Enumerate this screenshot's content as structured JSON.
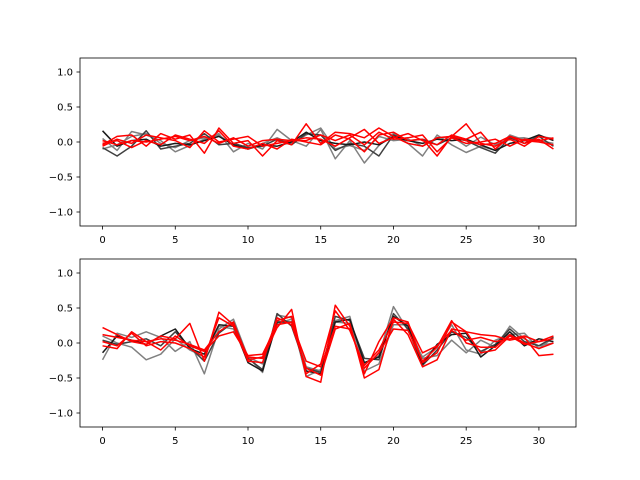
{
  "chart_data": [
    {
      "type": "line",
      "x": [
        0,
        1,
        2,
        3,
        4,
        5,
        6,
        7,
        8,
        9,
        10,
        11,
        12,
        13,
        14,
        15,
        16,
        17,
        18,
        19,
        20,
        21,
        22,
        23,
        24,
        25,
        26,
        27,
        28,
        29,
        30,
        31
      ],
      "ylim": [
        -1.2,
        1.2
      ],
      "xlim": [
        -1.55,
        32.55
      ],
      "xticks": [
        0,
        5,
        10,
        15,
        20,
        25,
        30
      ],
      "yticks": [
        -1.0,
        -0.5,
        0.0,
        0.5,
        1.0
      ],
      "xtick_labels": [
        "0",
        "5",
        "10",
        "15",
        "20",
        "25",
        "30"
      ],
      "ytick_labels": [
        "−1.0",
        "−0.5",
        "0.0",
        "0.5",
        "1.0"
      ],
      "series": [
        {
          "color": "#808080",
          "values": [
            -0.1,
            -0.04,
            0.08,
            0.12,
            -0.02,
            -0.08,
            0.02,
            0.06,
            0.1,
            -0.05,
            -0.1,
            -0.02,
            0.06,
            -0.03,
            0.1,
            0.2,
            -0.1,
            -0.05,
            -0.12,
            0.08,
            0.02,
            0.04,
            -0.06,
            0.05,
            0.08,
            -0.06,
            0.07,
            -0.04,
            0.05,
            0.06,
            0.02,
            -0.02
          ]
        },
        {
          "color": "#808080",
          "values": [
            0.05,
            -0.12,
            0.15,
            0.1,
            0.02,
            -0.14,
            -0.05,
            0.04,
            0.12,
            -0.14,
            -0.02,
            -0.1,
            0.18,
            0.02,
            -0.06,
            0.18,
            -0.24,
            0.02,
            -0.3,
            -0.05,
            0.12,
            -0.02,
            -0.2,
            0.1,
            -0.04,
            -0.15,
            -0.06,
            -0.12,
            0.1,
            0.03,
            0.08,
            0.05
          ]
        },
        {
          "color": "#404040",
          "values": [
            -0.08,
            -0.2,
            -0.06,
            0.16,
            -0.1,
            -0.06,
            -0.02,
            0.12,
            -0.04,
            -0.02,
            -0.08,
            -0.06,
            0.04,
            -0.04,
            0.12,
            0.1,
            -0.12,
            -0.02,
            -0.06,
            -0.2,
            0.1,
            0.02,
            0.04,
            -0.04,
            0.06,
            0.02,
            -0.08,
            -0.16,
            0.06,
            -0.02,
            0.08,
            -0.06
          ]
        },
        {
          "color": "#1a1a1a",
          "values": [
            0.16,
            -0.06,
            0.02,
            0.04,
            -0.06,
            -0.02,
            -0.04,
            0.02,
            0.08,
            -0.04,
            -0.1,
            -0.04,
            -0.06,
            0.0,
            0.14,
            0.02,
            -0.02,
            -0.04,
            0.0,
            -0.04,
            0.08,
            0.02,
            -0.02,
            0.04,
            0.02,
            0.04,
            -0.04,
            -0.12,
            -0.02,
            0.02,
            0.1,
            0.02
          ]
        },
        {
          "color": "#ff0000",
          "values": [
            -0.04,
            0.08,
            0.1,
            -0.06,
            0.12,
            0.04,
            0.1,
            -0.16,
            0.2,
            -0.02,
            0.02,
            -0.2,
            0.02,
            -0.04,
            0.26,
            -0.02,
            0.14,
            0.12,
            0.06,
            0.2,
            0.08,
            -0.02,
            -0.06,
            0.06,
            0.08,
            0.26,
            -0.02,
            -0.06,
            0.04,
            -0.06,
            0.08,
            0.04
          ]
        },
        {
          "color": "#ff0000",
          "values": [
            0.02,
            -0.04,
            0.02,
            0.0,
            0.04,
            0.08,
            0.02,
            0.08,
            -0.02,
            0.06,
            -0.06,
            0.02,
            0.04,
            0.02,
            0.06,
            0.04,
            -0.06,
            0.06,
            0.18,
            -0.02,
            0.06,
            0.12,
            0.02,
            -0.04,
            0.1,
            0.04,
            0.14,
            -0.1,
            0.08,
            0.02,
            0.0,
            -0.04
          ]
        },
        {
          "color": "#ff0000",
          "values": [
            -0.06,
            0.04,
            -0.02,
            0.1,
            0.06,
            0.02,
            -0.08,
            0.16,
            0.0,
            0.04,
            0.08,
            -0.06,
            -0.02,
            0.02,
            0.02,
            0.1,
            0.02,
            0.1,
            -0.04,
            0.14,
            0.04,
            0.06,
            0.1,
            -0.14,
            0.06,
            -0.02,
            0.0,
            0.04,
            -0.06,
            0.04,
            0.02,
            0.06
          ]
        },
        {
          "color": "#ff0000",
          "values": [
            -0.02,
            0.02,
            -0.08,
            0.02,
            -0.04,
            0.1,
            0.04,
            -0.02,
            0.16,
            -0.06,
            -0.1,
            -0.02,
            -0.1,
            0.04,
            0.0,
            -0.04,
            0.1,
            0.04,
            -0.14,
            0.1,
            0.14,
            0.02,
            0.04,
            -0.2,
            0.08,
            0.02,
            -0.04,
            -0.02,
            0.08,
            -0.02,
            0.04,
            -0.1
          ]
        }
      ]
    },
    {
      "type": "line",
      "x": [
        0,
        1,
        2,
        3,
        4,
        5,
        6,
        7,
        8,
        9,
        10,
        11,
        12,
        13,
        14,
        15,
        16,
        17,
        18,
        19,
        20,
        21,
        22,
        23,
        24,
        25,
        26,
        27,
        28,
        29,
        30,
        31
      ],
      "ylim": [
        -1.2,
        1.2
      ],
      "xlim": [
        -1.55,
        32.55
      ],
      "xticks": [
        0,
        5,
        10,
        15,
        20,
        25,
        30
      ],
      "yticks": [
        -1.0,
        -0.5,
        0.0,
        0.5,
        1.0
      ],
      "xtick_labels": [
        "0",
        "5",
        "10",
        "15",
        "20",
        "25",
        "30"
      ],
      "ytick_labels": [
        "−1.0",
        "−0.5",
        "0.0",
        "0.5",
        "1.0"
      ],
      "series": [
        {
          "color": "#808080",
          "values": [
            -0.24,
            0.14,
            0.08,
            0.16,
            0.08,
            -0.12,
            0.02,
            -0.44,
            0.2,
            0.34,
            -0.2,
            -0.42,
            0.4,
            0.36,
            -0.34,
            -0.4,
            0.3,
            0.28,
            -0.3,
            -0.18,
            0.52,
            0.18,
            -0.2,
            -0.06,
            0.26,
            -0.1,
            -0.16,
            0.04,
            0.12,
            0.14,
            -0.08,
            0.08
          ]
        },
        {
          "color": "#808080",
          "values": [
            0.1,
            0.0,
            -0.06,
            -0.24,
            -0.16,
            0.06,
            -0.1,
            -0.2,
            0.24,
            0.2,
            -0.2,
            -0.3,
            0.28,
            0.34,
            -0.48,
            -0.38,
            0.32,
            0.38,
            -0.4,
            -0.3,
            0.26,
            0.26,
            -0.22,
            -0.18,
            0.04,
            -0.14,
            0.04,
            -0.06,
            0.24,
            0.06,
            -0.04,
            0.0
          ]
        },
        {
          "color": "#404040",
          "values": [
            0.04,
            -0.02,
            0.02,
            0.06,
            -0.04,
            0.16,
            -0.06,
            -0.26,
            0.14,
            0.3,
            -0.22,
            -0.38,
            0.42,
            0.24,
            -0.36,
            -0.42,
            0.38,
            0.32,
            -0.22,
            -0.24,
            0.42,
            0.2,
            -0.32,
            -0.1,
            0.16,
            0.08,
            -0.12,
            -0.02,
            0.2,
            0.02,
            -0.04,
            0.08
          ]
        },
        {
          "color": "#1a1a1a",
          "values": [
            -0.14,
            0.1,
            0.04,
            -0.02,
            0.1,
            0.2,
            -0.08,
            -0.16,
            0.26,
            0.24,
            -0.28,
            -0.4,
            0.3,
            0.3,
            -0.4,
            -0.44,
            0.3,
            0.34,
            -0.28,
            -0.2,
            0.38,
            0.24,
            -0.3,
            -0.02,
            0.12,
            0.14,
            -0.2,
            -0.04,
            0.16,
            -0.04,
            0.06,
            0.02
          ]
        },
        {
          "color": "#ff0000",
          "values": [
            0.22,
            0.12,
            0.02,
            -0.02,
            0.1,
            0.06,
            0.28,
            -0.26,
            0.44,
            0.26,
            -0.2,
            -0.22,
            0.22,
            0.48,
            -0.48,
            -0.56,
            0.54,
            0.24,
            -0.44,
            0.02,
            0.36,
            0.3,
            -0.28,
            -0.14,
            0.3,
            0.16,
            0.12,
            0.1,
            0.04,
            0.08,
            -0.18,
            -0.16
          ]
        },
        {
          "color": "#ff0000",
          "values": [
            0.12,
            0.08,
            0.04,
            0.02,
            0.06,
            0.04,
            -0.02,
            -0.1,
            0.16,
            0.3,
            -0.24,
            -0.2,
            0.32,
            0.38,
            -0.44,
            -0.3,
            0.46,
            0.18,
            -0.32,
            -0.1,
            0.3,
            0.28,
            -0.14,
            -0.04,
            0.18,
            0.04,
            0.08,
            0.02,
            0.06,
            0.1,
            0.02,
            0.06
          ]
        },
        {
          "color": "#ff0000",
          "values": [
            0.02,
            -0.04,
            0.14,
            -0.04,
            0.02,
            0.0,
            -0.08,
            -0.2,
            0.36,
            0.24,
            -0.26,
            -0.28,
            0.36,
            0.26,
            -0.36,
            -0.46,
            0.2,
            0.28,
            -0.5,
            -0.38,
            0.34,
            0.12,
            -0.34,
            -0.24,
            0.2,
            0.16,
            -0.14,
            -0.1,
            0.1,
            -0.02,
            0.02,
            0.1
          ]
        },
        {
          "color": "#ff0000",
          "values": [
            -0.04,
            -0.08,
            0.16,
            0.02,
            -0.1,
            0.1,
            -0.04,
            -0.12,
            0.1,
            0.16,
            -0.18,
            -0.16,
            0.26,
            0.3,
            -0.26,
            -0.34,
            0.24,
            0.2,
            -0.36,
            -0.14,
            0.2,
            0.18,
            -0.26,
            -0.06,
            0.32,
            0.0,
            -0.06,
            -0.06,
            0.12,
            0.0,
            -0.08,
            0.0
          ]
        }
      ]
    }
  ]
}
